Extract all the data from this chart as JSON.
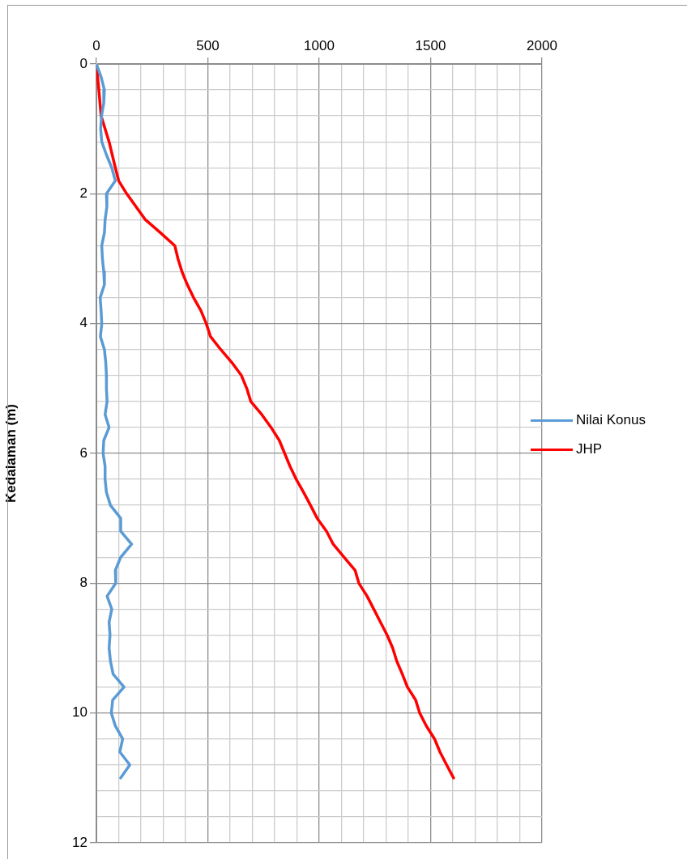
{
  "chart_data": {
    "type": "line",
    "ylabel": "Kedalaman (m)",
    "legend": "right",
    "grid": true,
    "marker": "none",
    "line_style": "solid",
    "xlim": [
      0,
      2000
    ],
    "xticks": [
      0,
      {
        "value": 100,
        "label": null
      },
      {
        "value": 200,
        "label": null
      },
      {
        "value": 300,
        "label": null
      },
      {
        "value": 400,
        "label": null
      },
      500,
      {
        "value": 600,
        "label": null
      },
      {
        "value": 700,
        "label": null
      },
      {
        "value": 800,
        "label": null
      },
      {
        "value": 900,
        "label": null
      },
      1000,
      {
        "value": 1100,
        "label": null
      },
      {
        "value": 1200,
        "label": null
      },
      {
        "value": 1300,
        "label": null
      },
      {
        "value": 1400,
        "label": null
      },
      1500,
      {
        "value": 1600,
        "label": null
      },
      {
        "value": 1700,
        "label": null
      },
      {
        "value": 1800,
        "label": null
      },
      {
        "value": 1900,
        "label": null
      },
      2000
    ],
    "ylim": [
      12,
      0
    ],
    "yticks": [
      0,
      {
        "value": 0.4,
        "label": null
      },
      {
        "value": 0.8,
        "label": null
      },
      {
        "value": 1.2,
        "label": null
      },
      {
        "value": 1.6,
        "label": null
      },
      2,
      {
        "value": 2.4,
        "label": null
      },
      {
        "value": 2.8,
        "label": null
      },
      {
        "value": 3.2,
        "label": null
      },
      {
        "value": 3.6,
        "label": null
      },
      4,
      {
        "value": 4.4,
        "label": null
      },
      {
        "value": 4.8,
        "label": null
      },
      {
        "value": 5.2,
        "label": null
      },
      {
        "value": 5.6,
        "label": null
      },
      6,
      {
        "value": 6.4,
        "label": null
      },
      {
        "value": 6.8,
        "label": null
      },
      {
        "value": 7.2,
        "label": null
      },
      {
        "value": 7.6,
        "label": null
      },
      8,
      {
        "value": 8.4,
        "label": null
      },
      {
        "value": 8.8,
        "label": null
      },
      {
        "value": 9.2,
        "label": null
      },
      {
        "value": 9.6,
        "label": null
      },
      10,
      {
        "value": 10.4,
        "label": null
      },
      {
        "value": 10.8,
        "label": null
      },
      {
        "value": 11.2,
        "label": null
      },
      {
        "value": 11.6,
        "label": null
      },
      12
    ],
    "series": [
      {
        "name": "Nilai Konus",
        "color": "#5b9bd5",
        "x": [
          0,
          21,
          36,
          33,
          23,
          19,
          24,
          45,
          69,
          85,
          45,
          47,
          39,
          36,
          24,
          27,
          33,
          36,
          17,
          21,
          24,
          18,
          36,
          42,
          45,
          45,
          48,
          39,
          57,
          33,
          30,
          39,
          39,
          45,
          63,
          109,
          109,
          158,
          109,
          85,
          87,
          48,
          69,
          57,
          61,
          57,
          63,
          75,
          124,
          73,
          67,
          85,
          118,
          105,
          150,
          109
        ],
        "values": [
          0,
          0.2,
          0.4,
          0.6,
          0.8,
          1.0,
          1.2,
          1.4,
          1.6,
          1.8,
          2.0,
          2.2,
          2.4,
          2.6,
          2.8,
          3.0,
          3.2,
          3.4,
          3.6,
          3.8,
          4.0,
          4.2,
          4.4,
          4.6,
          4.8,
          5.0,
          5.2,
          5.4,
          5.6,
          5.8,
          6.0,
          6.2,
          6.4,
          6.6,
          6.8,
          7.0,
          7.2,
          7.4,
          7.6,
          7.8,
          8.0,
          8.2,
          8.4,
          8.6,
          8.8,
          9.0,
          9.2,
          9.4,
          9.6,
          9.8,
          10.0,
          10.2,
          10.4,
          10.6,
          10.8,
          11.0
        ]
      },
      {
        "name": "JHP",
        "color": "#ff0000",
        "x": [
          0,
          11,
          21,
          57,
          85,
          100,
          136,
          220,
          287,
          352,
          366,
          384,
          408,
          436,
          469,
          493,
          512,
          558,
          608,
          651,
          675,
          693,
          742,
          784,
          821,
          845,
          869,
          897,
          930,
          961,
          991,
          1033,
          1063,
          1112,
          1161,
          1178,
          1215,
          1245,
          1275,
          1305,
          1330,
          1348,
          1373,
          1396,
          1433,
          1451,
          1481,
          1518,
          1542,
          1572,
          1603
        ],
        "values": [
          0,
          0.4,
          0.8,
          1.2,
          1.6,
          1.8,
          2.0,
          2.4,
          2.6,
          2.8,
          3.0,
          3.2,
          3.4,
          3.6,
          3.8,
          4.0,
          4.2,
          4.4,
          4.6,
          4.8,
          5.0,
          5.2,
          5.4,
          5.6,
          5.8,
          6.0,
          6.2,
          6.4,
          6.6,
          6.8,
          7.0,
          7.2,
          7.4,
          7.6,
          7.8,
          8.0,
          8.2,
          8.4,
          8.6,
          8.8,
          9.0,
          9.2,
          9.4,
          9.6,
          9.8,
          10.0,
          10.2,
          10.4,
          10.6,
          10.8,
          11.0
        ]
      }
    ]
  }
}
